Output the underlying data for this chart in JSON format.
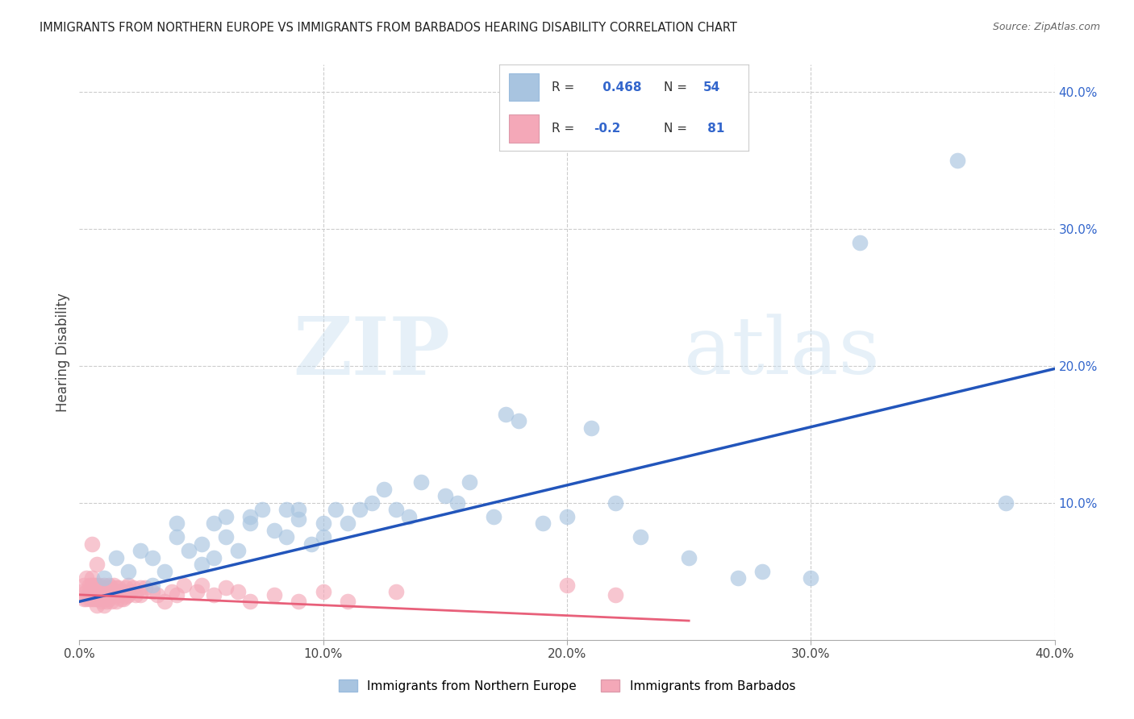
{
  "title": "IMMIGRANTS FROM NORTHERN EUROPE VS IMMIGRANTS FROM BARBADOS HEARING DISABILITY CORRELATION CHART",
  "source": "Source: ZipAtlas.com",
  "ylabel": "Hearing Disability",
  "xlim": [
    0.0,
    0.4
  ],
  "ylim": [
    0.0,
    0.42
  ],
  "background_color": "#ffffff",
  "blue_scatter_color": "#a8c4e0",
  "pink_scatter_color": "#f4a8b8",
  "blue_line_color": "#2255bb",
  "pink_line_color": "#e8607a",
  "legend_blue_label": "Immigrants from Northern Europe",
  "legend_pink_label": "Immigrants from Barbados",
  "R_blue": 0.468,
  "N_blue": 54,
  "R_pink": -0.2,
  "N_pink": 81,
  "watermark_zip": "ZIP",
  "watermark_atlas": "atlas",
  "blue_line_x0": 0.0,
  "blue_line_y0": 0.028,
  "blue_line_x1": 0.4,
  "blue_line_y1": 0.198,
  "pink_line_x0": 0.0,
  "pink_line_y0": 0.033,
  "pink_line_x1": 0.25,
  "pink_line_y1": 0.014,
  "blue_scatter_x": [
    0.01,
    0.015,
    0.02,
    0.025,
    0.03,
    0.03,
    0.035,
    0.04,
    0.04,
    0.045,
    0.05,
    0.05,
    0.055,
    0.055,
    0.06,
    0.06,
    0.065,
    0.07,
    0.07,
    0.075,
    0.08,
    0.085,
    0.085,
    0.09,
    0.09,
    0.095,
    0.1,
    0.1,
    0.105,
    0.11,
    0.115,
    0.12,
    0.125,
    0.13,
    0.135,
    0.14,
    0.15,
    0.155,
    0.16,
    0.17,
    0.18,
    0.19,
    0.2,
    0.21,
    0.22,
    0.23,
    0.25,
    0.27,
    0.28,
    0.3,
    0.32,
    0.175,
    0.38,
    0.36
  ],
  "blue_scatter_y": [
    0.045,
    0.06,
    0.05,
    0.065,
    0.04,
    0.06,
    0.05,
    0.085,
    0.075,
    0.065,
    0.07,
    0.055,
    0.06,
    0.085,
    0.09,
    0.075,
    0.065,
    0.09,
    0.085,
    0.095,
    0.08,
    0.075,
    0.095,
    0.088,
    0.095,
    0.07,
    0.075,
    0.085,
    0.095,
    0.085,
    0.095,
    0.1,
    0.11,
    0.095,
    0.09,
    0.115,
    0.105,
    0.1,
    0.115,
    0.09,
    0.16,
    0.085,
    0.09,
    0.155,
    0.1,
    0.075,
    0.06,
    0.045,
    0.05,
    0.045,
    0.29,
    0.165,
    0.1,
    0.35
  ],
  "pink_scatter_x": [
    0.001,
    0.002,
    0.002,
    0.003,
    0.003,
    0.003,
    0.004,
    0.004,
    0.004,
    0.005,
    0.005,
    0.005,
    0.005,
    0.006,
    0.006,
    0.006,
    0.007,
    0.007,
    0.007,
    0.007,
    0.008,
    0.008,
    0.008,
    0.009,
    0.009,
    0.009,
    0.01,
    0.01,
    0.01,
    0.01,
    0.011,
    0.011,
    0.011,
    0.012,
    0.012,
    0.012,
    0.013,
    0.013,
    0.013,
    0.014,
    0.014,
    0.015,
    0.015,
    0.015,
    0.016,
    0.016,
    0.017,
    0.017,
    0.018,
    0.018,
    0.019,
    0.019,
    0.02,
    0.02,
    0.021,
    0.022,
    0.023,
    0.025,
    0.025,
    0.027,
    0.03,
    0.032,
    0.035,
    0.038,
    0.04,
    0.043,
    0.048,
    0.05,
    0.055,
    0.06,
    0.065,
    0.07,
    0.08,
    0.09,
    0.1,
    0.11,
    0.13,
    0.2,
    0.22,
    0.005,
    0.007
  ],
  "pink_scatter_y": [
    0.035,
    0.04,
    0.03,
    0.045,
    0.035,
    0.03,
    0.04,
    0.035,
    0.03,
    0.045,
    0.04,
    0.035,
    0.03,
    0.04,
    0.035,
    0.03,
    0.04,
    0.035,
    0.03,
    0.025,
    0.04,
    0.035,
    0.03,
    0.038,
    0.033,
    0.028,
    0.04,
    0.035,
    0.03,
    0.025,
    0.038,
    0.032,
    0.028,
    0.04,
    0.034,
    0.03,
    0.038,
    0.033,
    0.028,
    0.04,
    0.033,
    0.038,
    0.033,
    0.028,
    0.038,
    0.033,
    0.035,
    0.03,
    0.035,
    0.03,
    0.038,
    0.032,
    0.04,
    0.033,
    0.035,
    0.038,
    0.033,
    0.038,
    0.033,
    0.038,
    0.035,
    0.033,
    0.028,
    0.035,
    0.033,
    0.04,
    0.035,
    0.04,
    0.033,
    0.038,
    0.035,
    0.028,
    0.033,
    0.028,
    0.035,
    0.028,
    0.035,
    0.04,
    0.033,
    0.07,
    0.055
  ]
}
